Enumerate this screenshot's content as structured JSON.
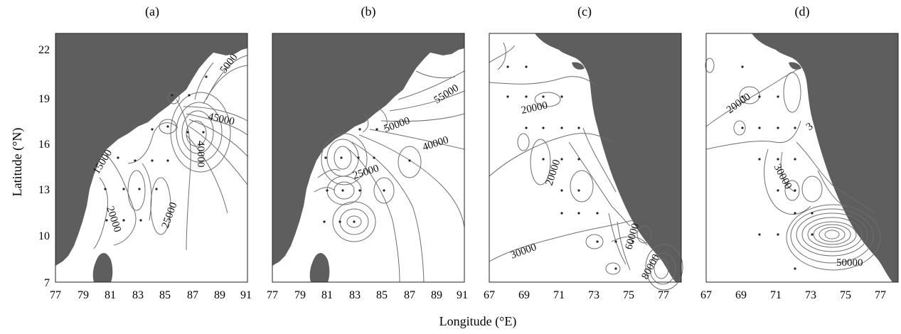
{
  "figure": {
    "y_axis_label": "Latitude (°N)",
    "x_axis_label": "Longitude (°E)",
    "y_ticks": [
      "22",
      "19",
      "16",
      "13",
      "10",
      "7"
    ],
    "land_color": "#5e5e5e",
    "contour_color": "#6e6e6e"
  },
  "panels": [
    {
      "label": "(a)",
      "x_ticks": [
        "77",
        "79",
        "81",
        "83",
        "85",
        "87",
        "89",
        "91"
      ],
      "xlim": [
        77,
        91
      ],
      "ylim": [
        7,
        23
      ],
      "contour_labels": [
        "5000",
        "45000",
        "40000",
        "15000",
        "20000",
        "25000"
      ]
    },
    {
      "label": "(b)",
      "x_ticks": [
        "77",
        "79",
        "81",
        "83",
        "85",
        "87",
        "89",
        "91"
      ],
      "xlim": [
        77,
        91
      ],
      "ylim": [
        7,
        23
      ],
      "contour_labels": [
        "55000",
        "50000",
        "40000",
        "25000"
      ]
    },
    {
      "label": "(c)",
      "x_ticks": [
        "67",
        "69",
        "71",
        "73",
        "75",
        "77"
      ],
      "xlim": [
        67,
        78
      ],
      "ylim": [
        7,
        23
      ],
      "contour_labels": [
        "20000",
        "20000",
        "30000",
        "60000",
        "80000"
      ]
    },
    {
      "label": "(d)",
      "x_ticks": [
        "67",
        "69",
        "71",
        "73",
        "75",
        "77"
      ],
      "xlim": [
        67,
        78
      ],
      "ylim": [
        7,
        23
      ],
      "contour_labels": [
        "20000",
        "3",
        "30000",
        "50000"
      ]
    }
  ]
}
